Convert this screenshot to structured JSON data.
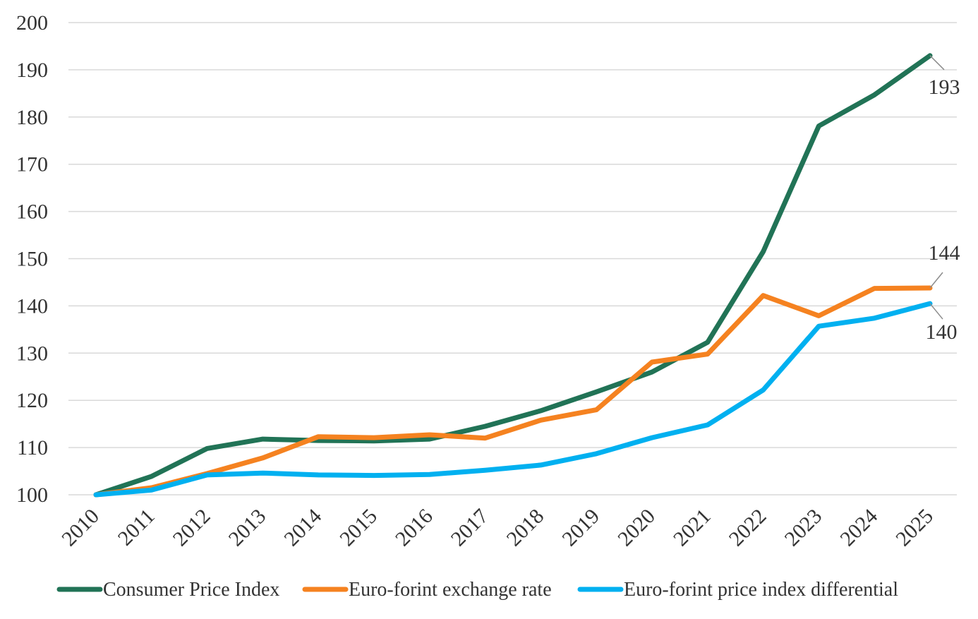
{
  "chart_data": {
    "type": "line",
    "title": "",
    "xlabel": "",
    "ylabel": "",
    "ylim": [
      100,
      200
    ],
    "yticks": [
      100,
      110,
      120,
      130,
      140,
      150,
      160,
      170,
      180,
      190,
      200
    ],
    "categories": [
      "2010",
      "2011",
      "2012",
      "2013",
      "2014",
      "2015",
      "2016",
      "2017",
      "2018",
      "2019",
      "2020",
      "2021",
      "2022",
      "2023",
      "2024",
      "2025"
    ],
    "legend_position": "bottom",
    "series": [
      {
        "name": "Consumer Price Index",
        "color": "#217356",
        "values": [
          100,
          103.9,
          109.8,
          111.8,
          111.5,
          111.4,
          111.8,
          114.5,
          117.8,
          121.8,
          126.0,
          132.3,
          151.5,
          178.1,
          184.7,
          193.0
        ],
        "end_label": "193"
      },
      {
        "name": "Euro-forint exchange rate",
        "color": "#f58220",
        "values": [
          100,
          101.5,
          104.5,
          107.8,
          112.3,
          112.1,
          112.7,
          112.0,
          115.8,
          118.0,
          128.1,
          129.8,
          142.2,
          137.9,
          143.7,
          143.8
        ],
        "end_label": "144"
      },
      {
        "name": "Euro-forint price index differential",
        "color": "#00b0f0",
        "values": [
          100,
          101.0,
          104.2,
          104.6,
          104.2,
          104.1,
          104.3,
          105.2,
          106.3,
          108.7,
          112.1,
          114.8,
          122.2,
          135.7,
          137.4,
          140.5
        ],
        "end_label": "140"
      }
    ]
  }
}
